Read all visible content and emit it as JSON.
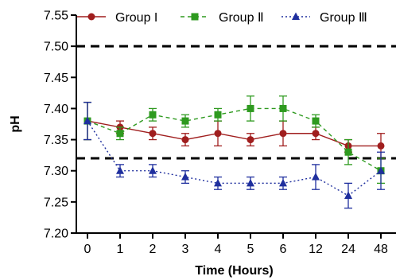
{
  "chart_data": {
    "type": "line",
    "xlabel": "Time (Hours)",
    "ylabel": "pH",
    "categories": [
      "0",
      "1",
      "2",
      "3",
      "4",
      "5",
      "6",
      "12",
      "24",
      "48"
    ],
    "ylim": [
      7.2,
      7.55
    ],
    "yticks": [
      "7.20",
      "7.25",
      "7.30",
      "7.35",
      "7.40",
      "7.45",
      "7.50",
      "7.55"
    ],
    "ytick_values": [
      7.2,
      7.25,
      7.3,
      7.35,
      7.4,
      7.45,
      7.5,
      7.55
    ],
    "reference_lines": [
      7.5,
      7.32
    ],
    "grid": false,
    "legend_position": "top",
    "series": [
      {
        "name": "Group I",
        "color": "#a01e1e",
        "line_style": "solid",
        "marker": "circle",
        "values": [
          7.38,
          7.37,
          7.36,
          7.35,
          7.36,
          7.35,
          7.36,
          7.36,
          7.34,
          7.34
        ],
        "errors": [
          0.03,
          0.01,
          0.01,
          0.01,
          0.02,
          0.01,
          0.02,
          0.01,
          0.01,
          0.02
        ]
      },
      {
        "name": "Group Ⅱ",
        "color": "#2e9a1f",
        "line_style": "dashed",
        "marker": "square",
        "values": [
          7.38,
          7.36,
          7.39,
          7.38,
          7.39,
          7.4,
          7.4,
          7.38,
          7.33,
          7.3
        ],
        "errors": [
          0.03,
          0.01,
          0.01,
          0.01,
          0.01,
          0.02,
          0.02,
          0.01,
          0.02,
          0.02
        ]
      },
      {
        "name": "Group Ⅲ",
        "color": "#1f2f9e",
        "line_style": "dotted",
        "marker": "triangle",
        "values": [
          7.38,
          7.3,
          7.3,
          7.29,
          7.28,
          7.28,
          7.28,
          7.29,
          7.26,
          7.3
        ],
        "errors": [
          0.03,
          0.01,
          0.01,
          0.01,
          0.01,
          0.01,
          0.01,
          0.02,
          0.02,
          0.03
        ]
      }
    ]
  }
}
